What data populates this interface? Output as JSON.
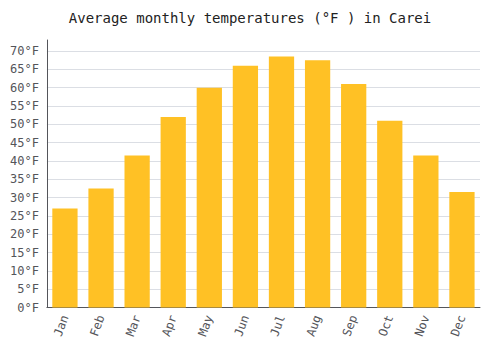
{
  "chart_data": {
    "type": "bar",
    "title": "Average monthly temperatures (°F ) in Carei",
    "categories": [
      "Jan",
      "Feb",
      "Mar",
      "Apr",
      "May",
      "Jun",
      "Jul",
      "Aug",
      "Sep",
      "Oct",
      "Nov",
      "Dec"
    ],
    "values": [
      27,
      32.5,
      41.5,
      52,
      60,
      66,
      68.5,
      67.5,
      61,
      51,
      41.5,
      31.5
    ],
    "color": "#FFC125",
    "ylim": [
      0,
      73
    ],
    "yticks": [
      {
        "value": 0,
        "label": "0°F"
      },
      {
        "value": 5,
        "label": "5°F"
      },
      {
        "value": 10,
        "label": "10°F"
      },
      {
        "value": 15,
        "label": "15°F"
      },
      {
        "value": 20,
        "label": "20°F"
      },
      {
        "value": 25,
        "label": "25°F"
      },
      {
        "value": 30,
        "label": "30°F"
      },
      {
        "value": 35,
        "label": "35°F"
      },
      {
        "value": 40,
        "label": "40°F"
      },
      {
        "value": 45,
        "label": "45°F"
      },
      {
        "value": 50,
        "label": "50°F"
      },
      {
        "value": 55,
        "label": "55°F"
      },
      {
        "value": 60,
        "label": "60°F"
      },
      {
        "value": 65,
        "label": "65°F"
      },
      {
        "value": 70,
        "label": "70°F"
      }
    ],
    "grid": true
  }
}
